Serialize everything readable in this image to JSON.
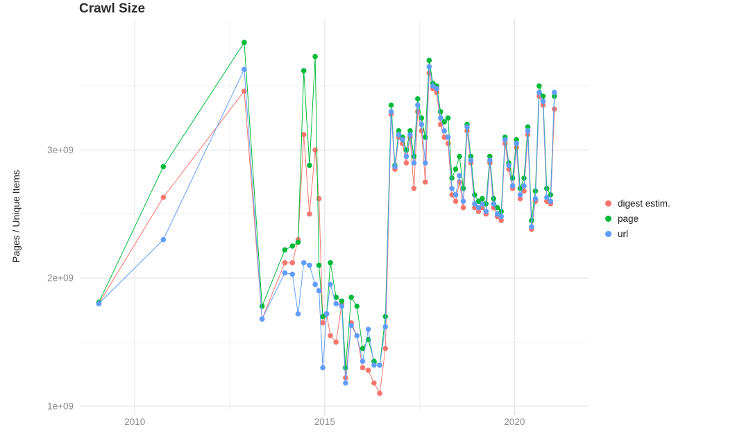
{
  "chart_data": {
    "type": "scatter",
    "title": "Crawl Size",
    "xlabel": "",
    "ylabel": "Pages / Unique Items",
    "legend_position": "right",
    "grid": true,
    "xlim": [
      2008.55,
      2021.95
    ],
    "ylim": [
      0.95,
      4.02
    ],
    "y_unit": "1e9 (billions of pages / unique items)",
    "x_ticks": [
      {
        "value": 2010,
        "label": "2010"
      },
      {
        "value": 2015,
        "label": "2015"
      },
      {
        "value": 2020,
        "label": "2020"
      }
    ],
    "y_ticks": [
      {
        "value": 1,
        "label": "1e+09"
      },
      {
        "value": 2,
        "label": "2e+09"
      },
      {
        "value": 3,
        "label": "3e+09"
      }
    ],
    "x_minor": [
      2012.5,
      2017.5
    ],
    "y_minor": [
      1.5,
      2.5,
      3.5
    ],
    "x": [
      2009.05,
      2010.75,
      2012.88,
      2013.35,
      2013.95,
      2014.15,
      2014.3,
      2014.45,
      2014.6,
      2014.75,
      2014.85,
      2014.95,
      2015.05,
      2015.15,
      2015.3,
      2015.45,
      2015.55,
      2015.7,
      2015.85,
      2016.0,
      2016.15,
      2016.3,
      2016.45,
      2016.6,
      2016.75,
      2016.85,
      2016.95,
      2017.05,
      2017.15,
      2017.25,
      2017.35,
      2017.45,
      2017.55,
      2017.65,
      2017.75,
      2017.85,
      2017.95,
      2018.05,
      2018.15,
      2018.25,
      2018.35,
      2018.45,
      2018.55,
      2018.65,
      2018.75,
      2018.85,
      2018.95,
      2019.05,
      2019.15,
      2019.25,
      2019.35,
      2019.45,
      2019.55,
      2019.65,
      2019.75,
      2019.85,
      2019.95,
      2020.05,
      2020.15,
      2020.25,
      2020.35,
      2020.45,
      2020.55,
      2020.65,
      2020.75,
      2020.85,
      2020.95,
      2021.05
    ],
    "series": [
      {
        "name": "digest estim.",
        "color": "#F8766D",
        "values": [
          1.8,
          2.63,
          3.46,
          1.68,
          2.12,
          2.12,
          2.3,
          3.12,
          2.5,
          3.0,
          2.62,
          1.65,
          1.72,
          1.55,
          1.5,
          1.8,
          1.22,
          1.65,
          1.55,
          1.3,
          1.28,
          1.18,
          1.1,
          1.45,
          3.28,
          2.85,
          3.1,
          3.05,
          2.9,
          3.1,
          2.7,
          3.3,
          3.15,
          2.75,
          3.6,
          3.48,
          3.45,
          3.2,
          3.1,
          3.05,
          2.65,
          2.6,
          2.75,
          2.55,
          3.15,
          2.9,
          2.55,
          2.52,
          2.55,
          2.5,
          2.9,
          2.55,
          2.48,
          2.45,
          3.05,
          2.85,
          2.7,
          3.02,
          2.62,
          2.68,
          3.12,
          2.38,
          2.6,
          3.42,
          3.35,
          2.6,
          2.58,
          3.32
        ]
      },
      {
        "name": "page",
        "color": "#00BA38",
        "values": [
          1.81,
          2.87,
          3.84,
          1.78,
          2.22,
          2.25,
          2.28,
          3.62,
          2.88,
          3.73,
          2.1,
          1.7,
          1.72,
          2.12,
          1.85,
          1.82,
          1.3,
          1.85,
          1.78,
          1.45,
          1.52,
          1.35,
          1.32,
          1.7,
          3.35,
          2.88,
          3.15,
          3.1,
          3.0,
          3.15,
          2.95,
          3.4,
          3.25,
          3.1,
          3.7,
          3.52,
          3.5,
          3.3,
          3.22,
          3.25,
          2.78,
          2.85,
          2.95,
          2.7,
          3.2,
          2.95,
          2.65,
          2.6,
          2.62,
          2.58,
          2.95,
          2.62,
          2.55,
          2.52,
          3.1,
          2.9,
          2.78,
          3.08,
          2.7,
          2.78,
          3.18,
          2.45,
          2.68,
          3.5,
          3.42,
          2.7,
          2.65,
          3.42
        ]
      },
      {
        "name": "url",
        "color": "#619CFF",
        "values": [
          1.8,
          2.3,
          3.63,
          1.68,
          2.04,
          2.03,
          1.72,
          2.12,
          2.1,
          1.95,
          1.9,
          1.3,
          1.72,
          1.95,
          1.8,
          1.78,
          1.18,
          1.63,
          1.55,
          1.35,
          1.6,
          1.32,
          1.32,
          1.62,
          3.3,
          2.87,
          3.12,
          3.08,
          2.95,
          3.12,
          2.9,
          3.35,
          3.2,
          2.9,
          3.65,
          3.5,
          3.48,
          3.25,
          3.15,
          3.1,
          2.7,
          2.65,
          2.8,
          2.6,
          3.18,
          2.92,
          2.58,
          2.55,
          2.58,
          2.52,
          2.92,
          2.58,
          2.5,
          2.48,
          3.08,
          2.88,
          2.72,
          3.05,
          2.65,
          2.72,
          3.15,
          2.4,
          2.62,
          3.45,
          3.38,
          2.63,
          2.6,
          3.45
        ]
      }
    ],
    "style": {
      "grid_major_color": "#e3e3e3",
      "grid_minor_color": "#f2f2f2",
      "tick_label_color": "#8a8a8a",
      "point_radius": 3.8,
      "line_width": 1
    }
  }
}
